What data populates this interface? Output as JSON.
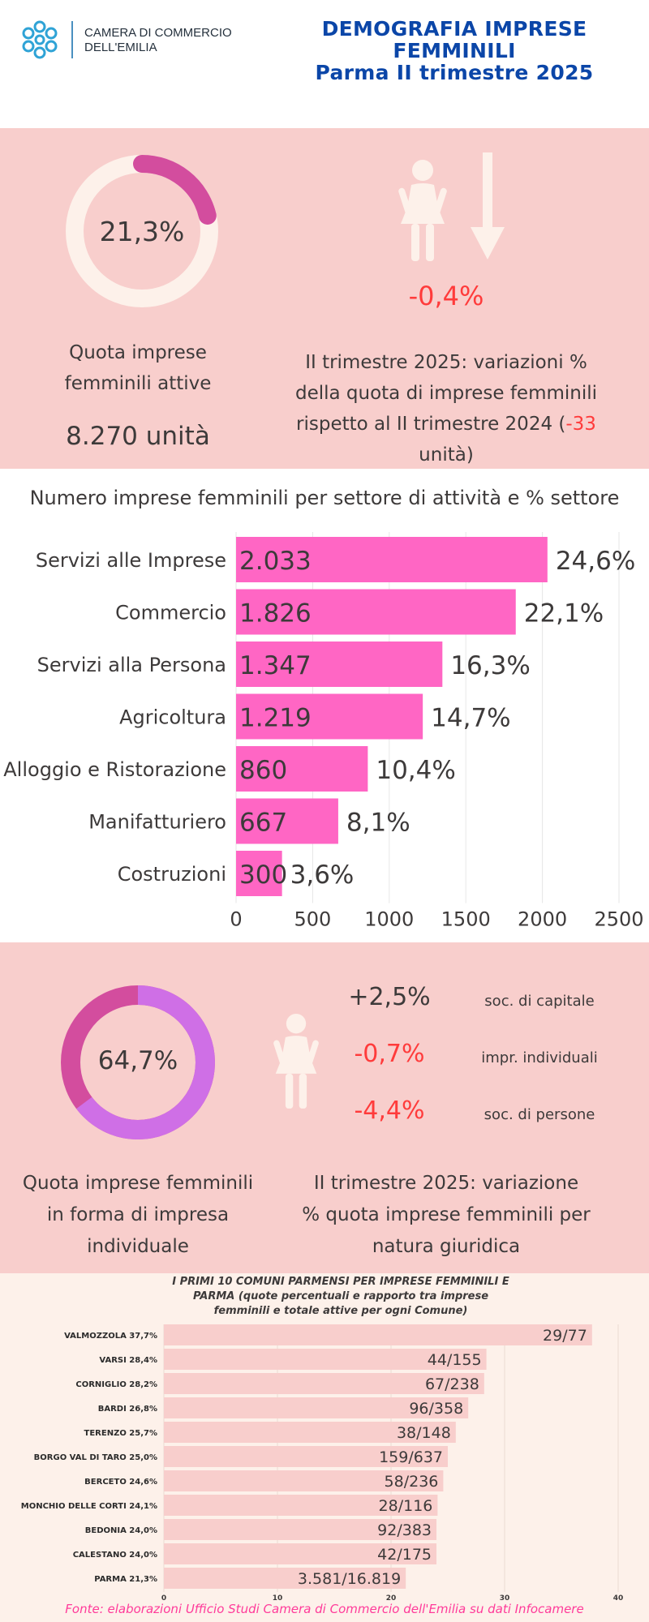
{
  "header": {
    "logo_line1": "CAMERA DI COMMERCIO",
    "logo_line2": "DELL'EMILIA",
    "title_line1": "DEMOGRAFIA IMPRESE",
    "title_line2": "FEMMINILI",
    "title_line3": "Parma II trimestre 2025"
  },
  "quota": {
    "donut_value": "21,3%",
    "donut_fraction": 0.213,
    "label_line1": "Quota imprese",
    "label_line2": "femminili attive",
    "units": "8.270 unità"
  },
  "variazione": {
    "value": "-0,4%",
    "text_line1": "II trimestre 2025: variazioni %",
    "text_line2": "della quota di imprese femminili",
    "text_line3_a": "rispetto al II trimestre 2024 (",
    "text_line3_b": "-33",
    "text_line4": "unità)"
  },
  "settori": {
    "title": "Numero imprese femminili per settore di attività e % settore",
    "chart_data": {
      "type": "bar",
      "orientation": "horizontal",
      "categories": [
        "Servizi alle Imprese",
        "Commercio",
        "Servizi alla Persona",
        "Agricoltura",
        "Alloggio e Ristorazione",
        "Manifatturiero",
        "Costruzioni"
      ],
      "values": [
        2033,
        1826,
        1347,
        1219,
        860,
        667,
        300
      ],
      "value_labels": [
        "2.033",
        "1.826",
        "1.347",
        "1.219",
        "860",
        "667",
        "300"
      ],
      "percent_labels": [
        "24,6%",
        "22,1%",
        "16,3%",
        "14,7%",
        "10,4%",
        "8,1%",
        "3,6%"
      ],
      "xlim": [
        0,
        2500
      ],
      "xticks": [
        "0",
        "500",
        "1000",
        "1500",
        "2000",
        "2500"
      ],
      "grid": true,
      "bar_color": "#ff66c4"
    }
  },
  "natura": {
    "donut_value": "64,7%",
    "donut_fraction": 0.647,
    "label_line1": "Quota imprese femminili",
    "label_line2": "in forma di impresa",
    "label_line3": "individuale",
    "rows": [
      {
        "value": "+2,5%",
        "label": "soc. di capitale",
        "color": "#3d3a3a"
      },
      {
        "value": "-0,7%",
        "label": "impr. individuali",
        "color": "#ff3b3b"
      },
      {
        "value": "-4,4%",
        "label": "soc. di persone",
        "color": "#ff3b3b"
      }
    ],
    "text_line1": "II trimestre 2025: variazione",
    "text_line2": "% quota imprese femminili per",
    "text_line3": "natura giuridica"
  },
  "comuni": {
    "title_line1": "I PRIMI 10 COMUNI PARMENSI PER IMPRESE FEMMINILI E",
    "title_line2": "PARMA  (quote percentuali e rapporto tra imprese",
    "title_line3": "femminili e totale attive per ogni Comune)",
    "chart_data": {
      "type": "bar",
      "orientation": "horizontal",
      "categories": [
        "VALMOZZOLA 37,7%",
        "VARSI 28,4%",
        "CORNIGLIO 28,2%",
        "BARDI 26,8%",
        "TERENZO 25,7%",
        "BORGO VAL DI TARO 25,0%",
        "BERCETO 24,6%",
        "MONCHIO DELLE CORTI 24,1%",
        "BEDONIA 24,0%",
        "CALESTANO 24,0%",
        "PARMA 21,3%"
      ],
      "values": [
        37.7,
        28.4,
        28.2,
        26.8,
        25.7,
        25.0,
        24.6,
        24.1,
        24.0,
        24.0,
        21.3
      ],
      "ratio_labels": [
        "29/77",
        "44/155",
        "67/238",
        "96/358",
        "38/148",
        "159/637",
        "58/236",
        "28/116",
        "92/383",
        "42/175",
        "3.581/16.819"
      ],
      "xlim": [
        0,
        40
      ],
      "xticks": [
        "0",
        "10",
        "20",
        "30",
        "40"
      ],
      "grid": true,
      "bar_color": "#f8cecc"
    },
    "fonte": "Fonte: elaborazioni Ufficio Studi Camera di Commercio  dell'Emilia su dati Infocamere"
  },
  "colors": {
    "pink_bg": "#f8cecc",
    "cream": "#fdf1ea",
    "magenta": "#d34d9e",
    "violet": "#cf6fe6",
    "brand_blue": "#0b46a8",
    "red": "#ff3b3b"
  },
  "icons": [
    "logo-mark-icon",
    "woman-icon",
    "arrow-down-icon"
  ]
}
